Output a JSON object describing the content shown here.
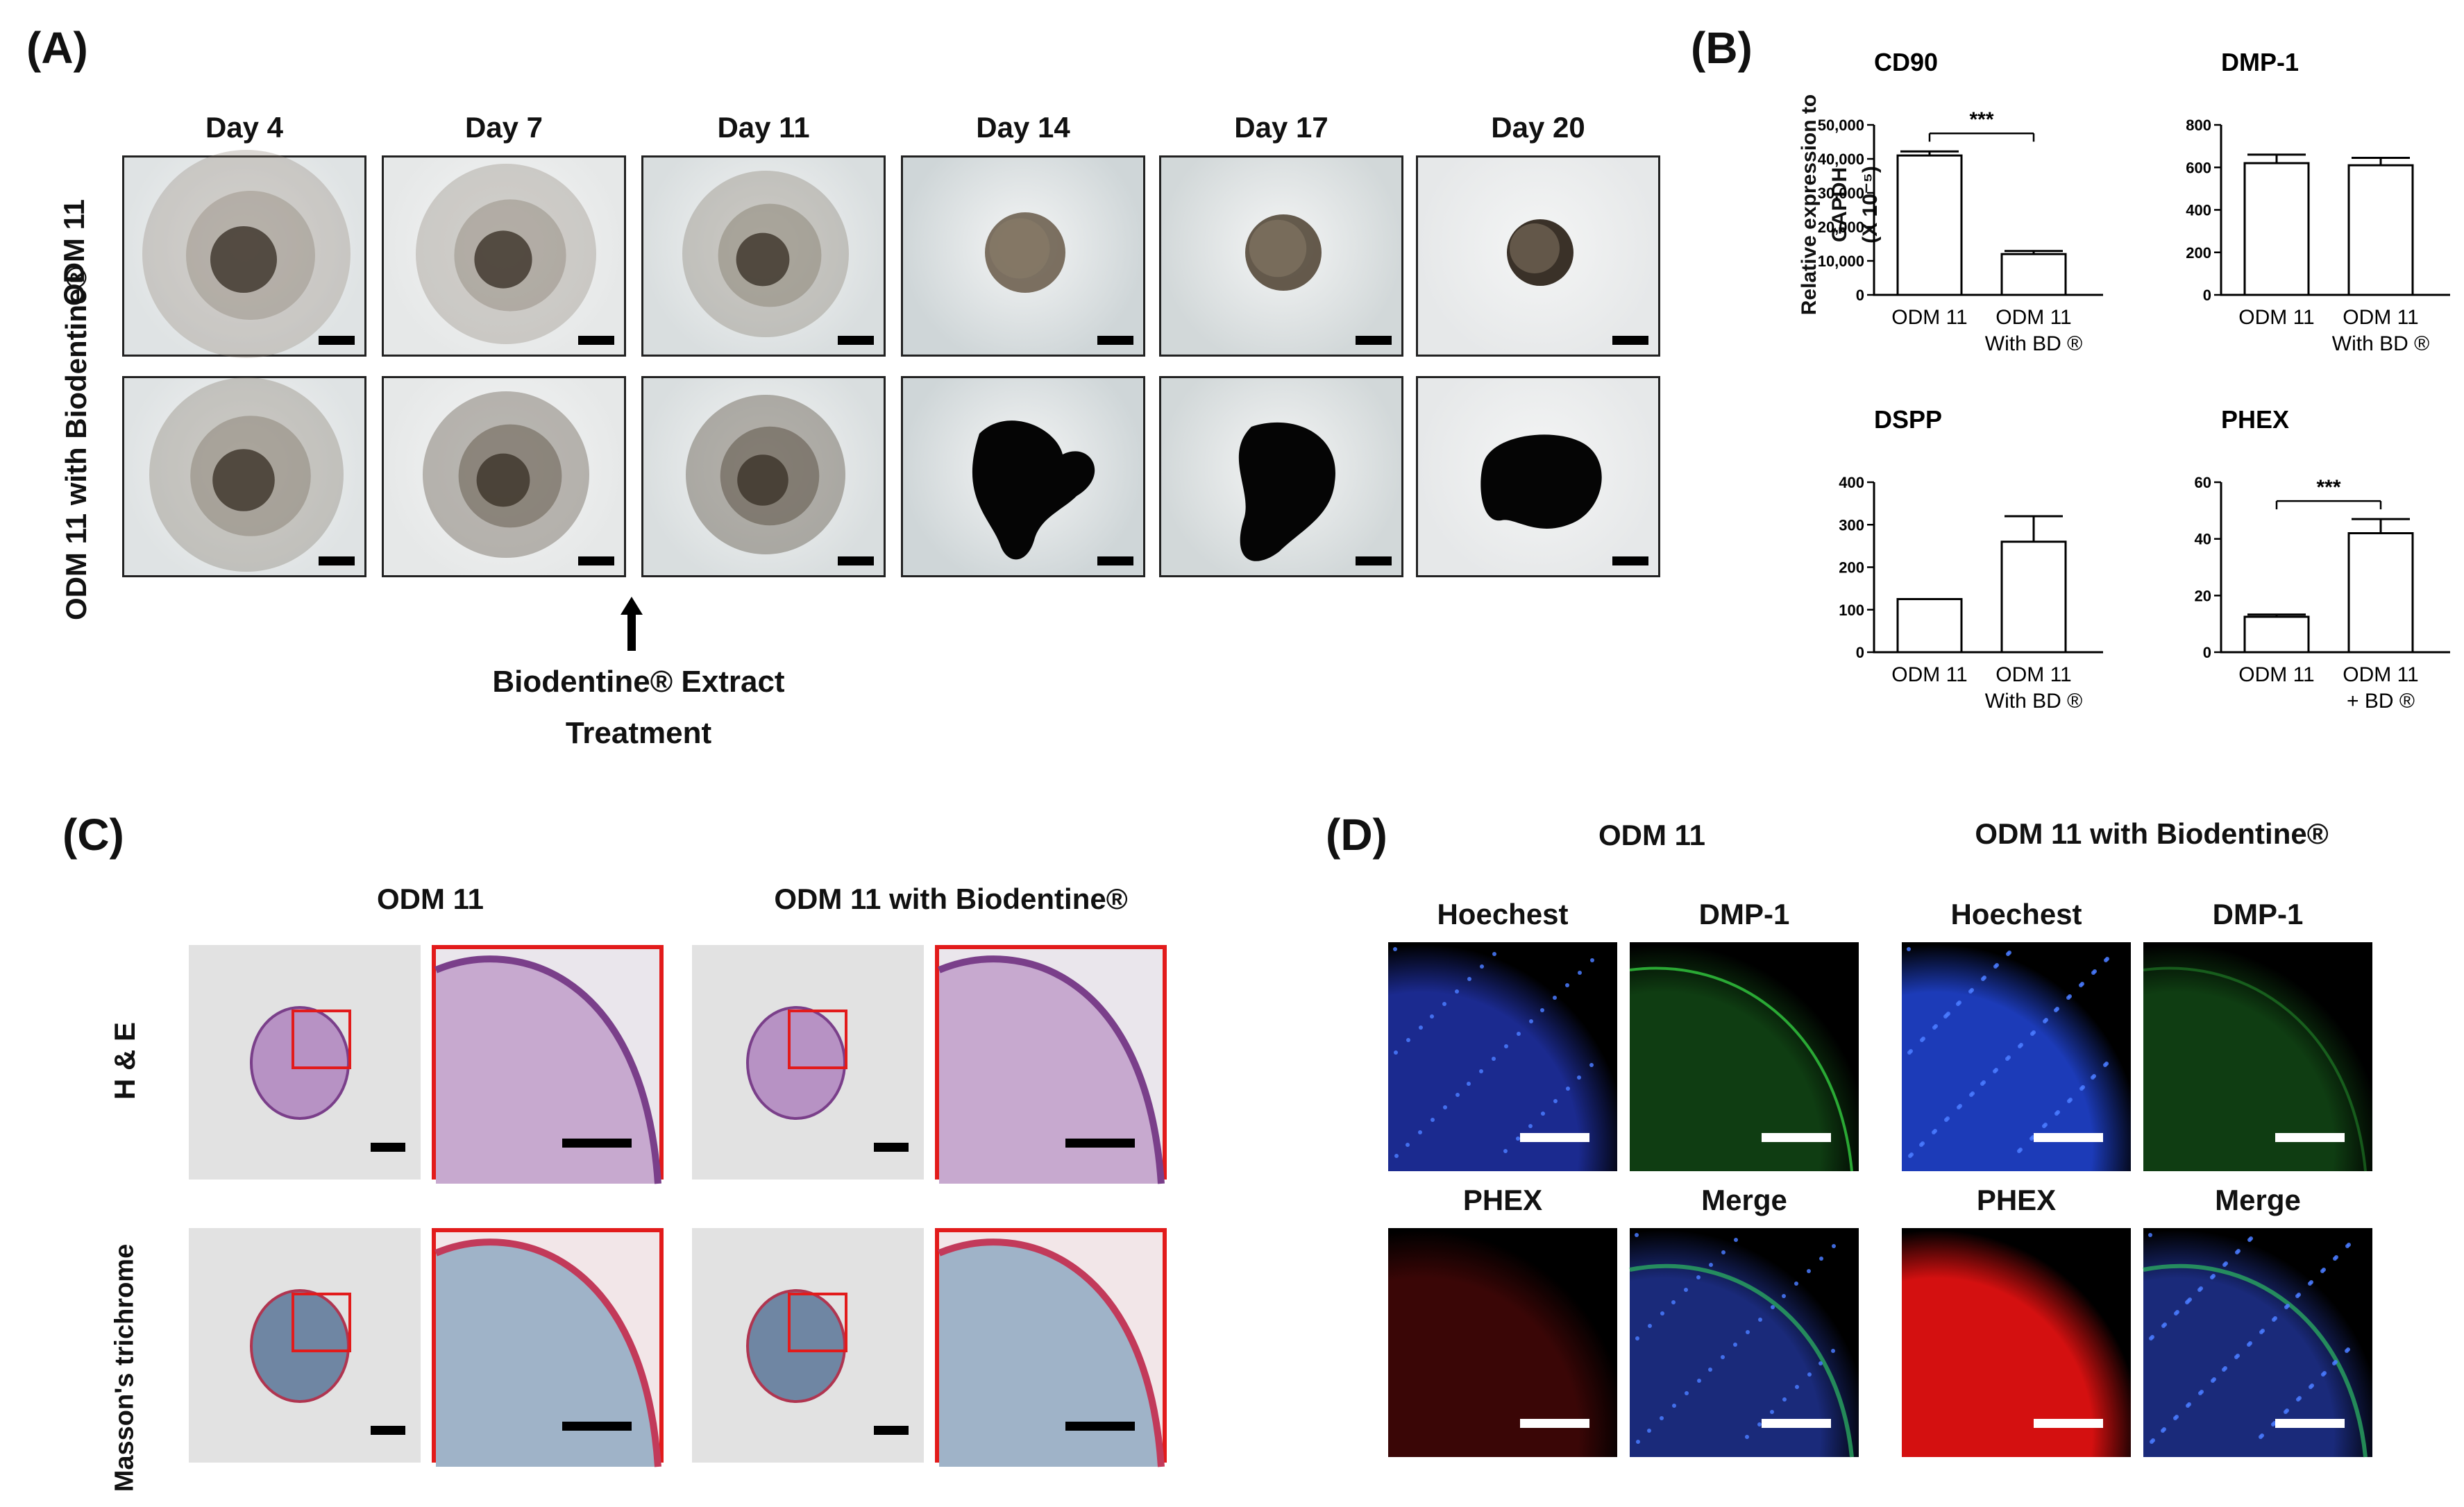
{
  "panels": {
    "A": {
      "letter": "(A)",
      "days": [
        "Day 4",
        "Day 7",
        "Day 11",
        "Day 14",
        "Day 17",
        "Day 20"
      ],
      "rows": [
        "ODM 11",
        "ODM 11 with Biodentine®"
      ],
      "treatment_note": [
        "Biodentine® Extract",
        "Treatment"
      ],
      "arrow": "↑"
    },
    "B": {
      "letter": "(B)",
      "ylabel_line1": "Relative expression to GAPDH",
      "ylabel_line2": "(X 10⁻⁵)"
    },
    "C": {
      "letter": "(C)",
      "col_titles": [
        "ODM 11",
        "ODM 11 with Biodentine®"
      ],
      "row_labels": [
        "H & E",
        "Masson's trichrome"
      ]
    },
    "D": {
      "letter": "(D)",
      "group_titles": [
        "ODM 11",
        "ODM 11 with Biodentine®"
      ],
      "stains": [
        "Hoechest",
        "DMP-1",
        "PHEX",
        "Merge"
      ]
    }
  },
  "chart_data": [
    {
      "type": "bar",
      "title": "CD90",
      "categories": [
        [
          "ODM 11"
        ],
        [
          "ODM 11",
          "With BD ®"
        ]
      ],
      "values": [
        41000,
        12000
      ],
      "errors": [
        1200,
        900
      ],
      "ylim": [
        0,
        50000
      ],
      "yticks": [
        "0",
        "10,000",
        "20,000",
        "30,000",
        "40,000",
        "50,000"
      ],
      "ytick_values": [
        0,
        10000,
        20000,
        30000,
        40000,
        50000
      ],
      "significance": "***"
    },
    {
      "type": "bar",
      "title": "DMP-1",
      "categories": [
        [
          "ODM 11"
        ],
        [
          "ODM 11",
          "With BD ®"
        ]
      ],
      "values": [
        620,
        610
      ],
      "errors": [
        40,
        35
      ],
      "ylim": [
        0,
        800
      ],
      "yticks": [
        "0",
        "200",
        "400",
        "600",
        "800"
      ],
      "ytick_values": [
        0,
        200,
        400,
        600,
        800
      ],
      "significance": ""
    },
    {
      "type": "bar",
      "title": "DSPP",
      "categories": [
        [
          "ODM 11"
        ],
        [
          "ODM 11",
          "With BD ®"
        ]
      ],
      "values": [
        125,
        260
      ],
      "errors": [
        0,
        60
      ],
      "ylim": [
        0,
        400
      ],
      "yticks": [
        "0",
        "100",
        "200",
        "300",
        "400"
      ],
      "ytick_values": [
        0,
        100,
        200,
        300,
        400
      ],
      "significance": ""
    },
    {
      "type": "bar",
      "title": "PHEX",
      "categories": [
        [
          "ODM 11"
        ],
        [
          "ODM 11",
          "+ BD ®"
        ]
      ],
      "values": [
        12.5,
        42
      ],
      "errors": [
        0.8,
        5
      ],
      "ylim": [
        0,
        60
      ],
      "yticks": [
        "0",
        "20",
        "40",
        "60"
      ],
      "ytick_values": [
        0,
        20,
        40,
        60
      ],
      "significance": "***"
    }
  ]
}
